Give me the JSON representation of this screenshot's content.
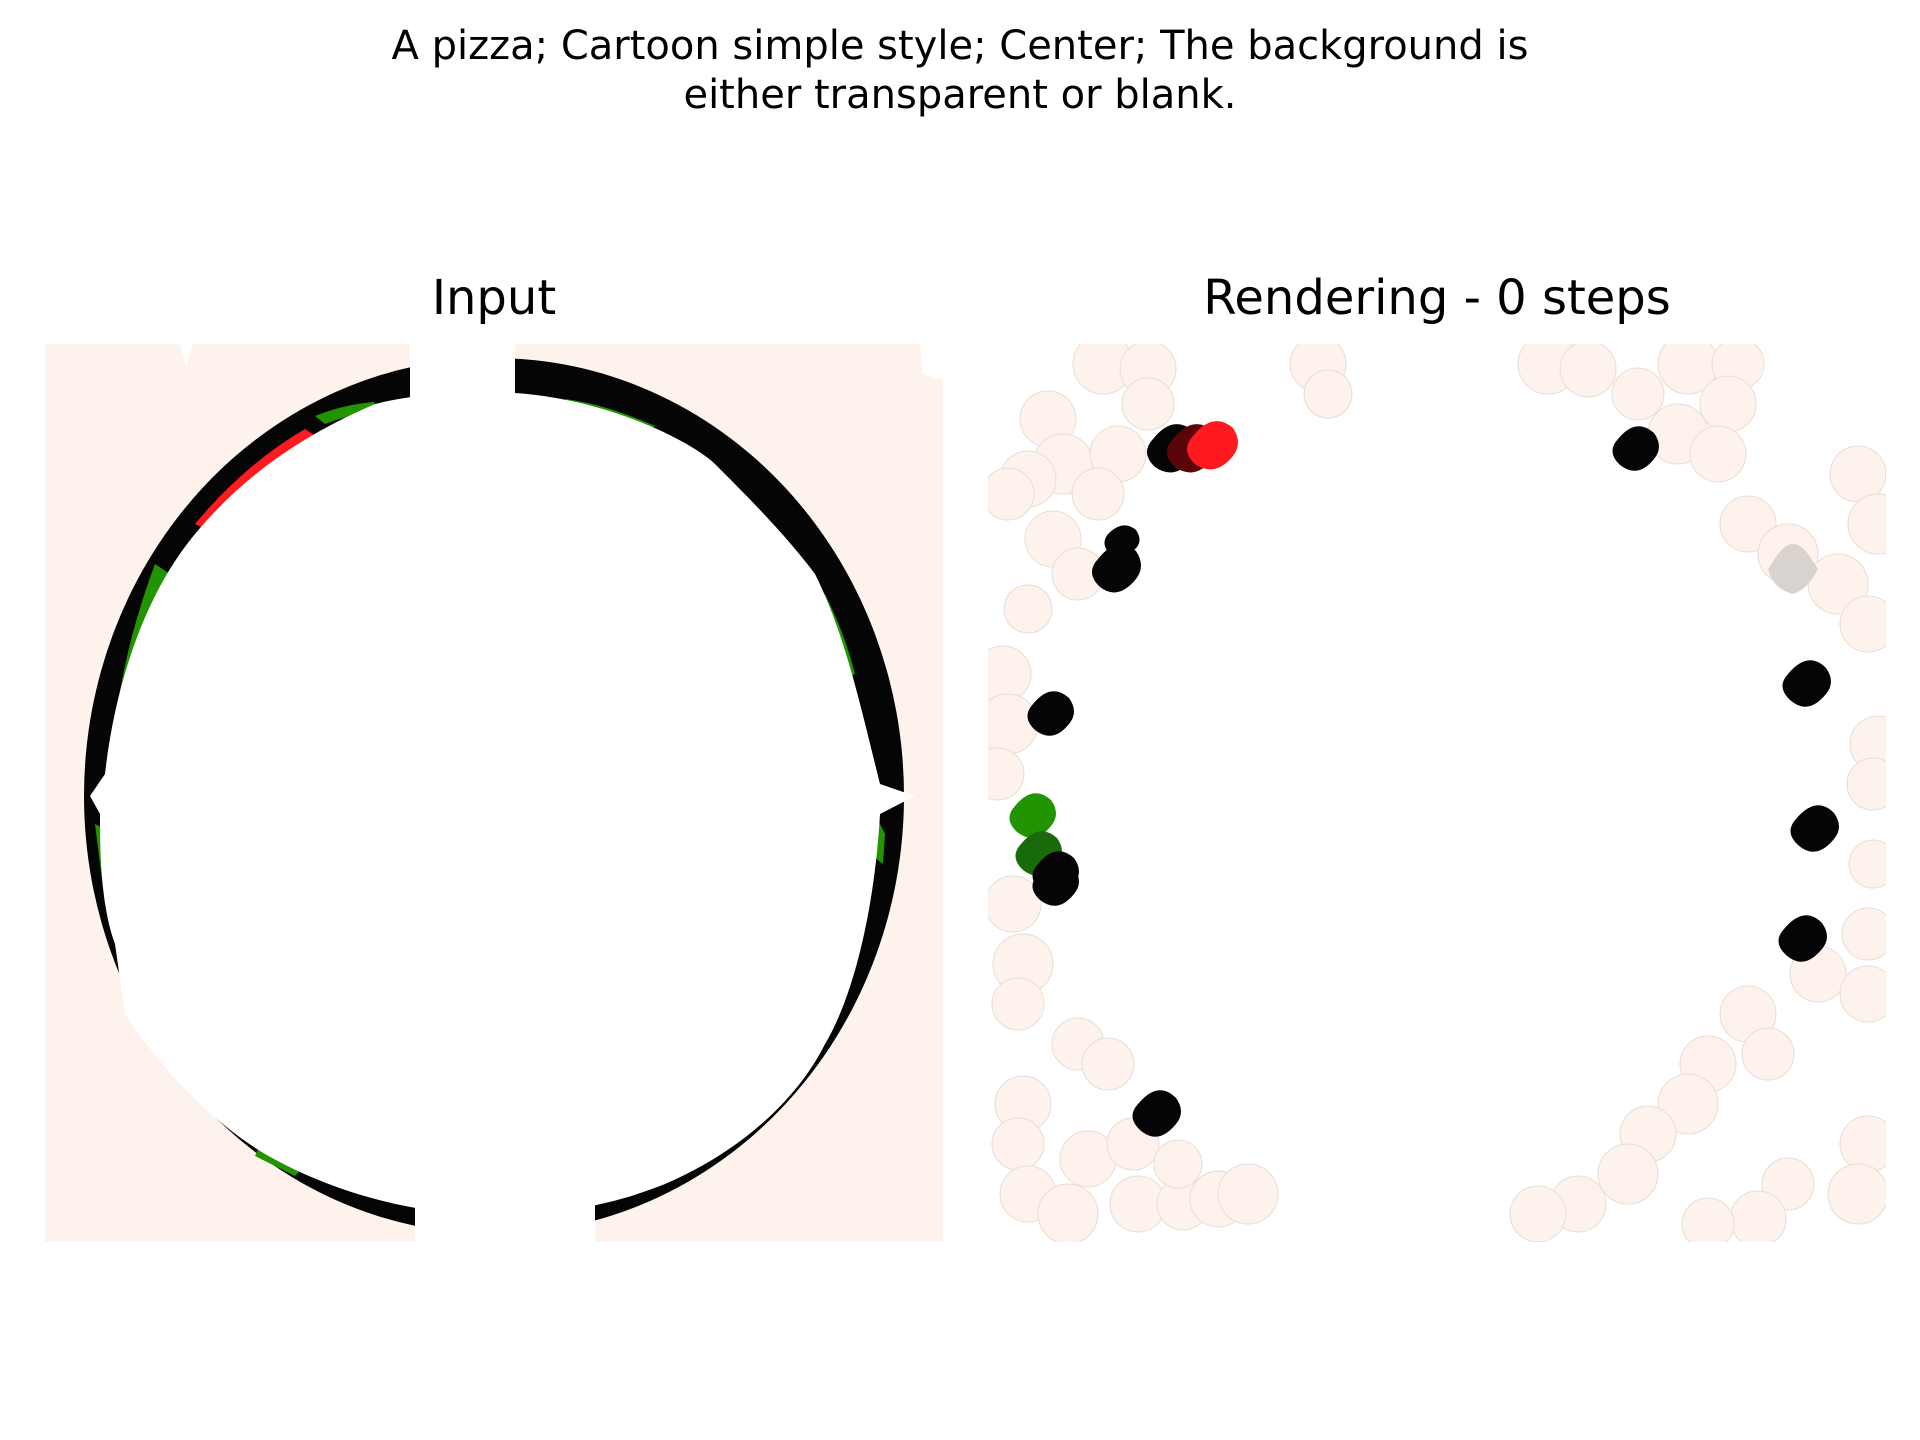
{
  "suptitle": {
    "line1": "A pizza; Cartoon simple style; Center; The background is",
    "line2": "either transparent or blank."
  },
  "panels": [
    {
      "title": "Input",
      "image": "pizza-outline-image"
    },
    {
      "title": "Rendering - 0 steps",
      "image": "rendered-blobs-image"
    }
  ],
  "colors": {
    "background_cream": "#fdf3ec",
    "crust_black": "#050505",
    "topping_green": "#229400",
    "topping_red": "#ff1a1f",
    "blob_gray": "#d8d3cf"
  }
}
